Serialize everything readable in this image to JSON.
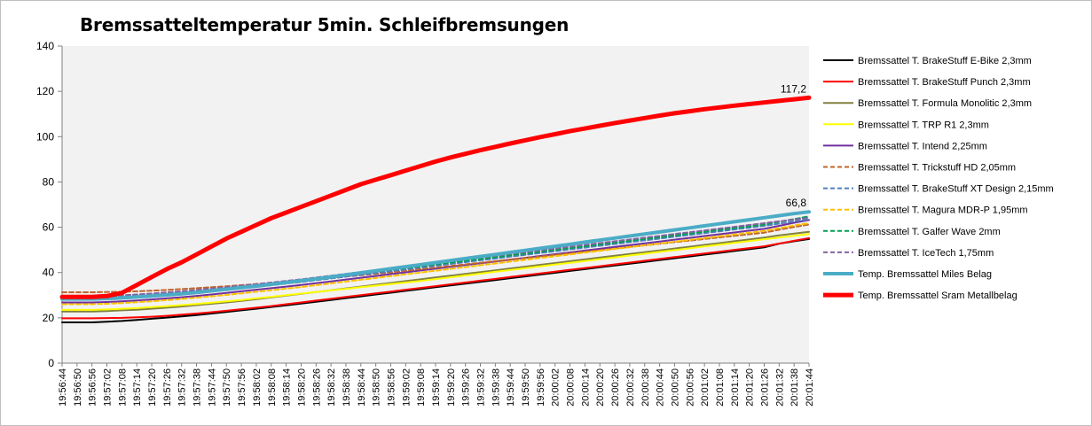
{
  "chart_data": {
    "type": "line",
    "title": "Bremssatteltemperatur  5min. Schleifbremsungen",
    "ylim": [
      0,
      140
    ],
    "yticks": [
      0,
      20,
      40,
      60,
      80,
      100,
      120,
      140
    ],
    "grid": false,
    "legend_position": "right",
    "plot_background": "#f2f2f2",
    "x_labels": [
      "19:56:44",
      "19:56:50",
      "19:56:56",
      "19:57:02",
      "19:57:08",
      "19:57:14",
      "19:57:20",
      "19:57:26",
      "19:57:32",
      "19:57:38",
      "19:57:44",
      "19:57:50",
      "19:57:56",
      "19:58:02",
      "19:58:08",
      "19:58:14",
      "19:58:20",
      "19:58:26",
      "19:58:32",
      "19:58:38",
      "19:58:44",
      "19:58:50",
      "19:58:56",
      "19:59:02",
      "19:59:08",
      "19:59:14",
      "19:59:20",
      "19:59:26",
      "19:59:32",
      "19:59:38",
      "19:59:44",
      "19:59:50",
      "19:59:56",
      "20:00:02",
      "20:00:08",
      "20:00:14",
      "20:00:20",
      "20:00:26",
      "20:00:32",
      "20:00:38",
      "20:00:44",
      "20:00:50",
      "20:00:56",
      "20:01:02",
      "20:01:08",
      "20:01:14",
      "20:01:20",
      "20:01:26",
      "20:01:32",
      "20:01:38",
      "20:01:44"
    ],
    "series": [
      {
        "name": "Bremssattel T. BrakeStuff E-Bike 2,3mm",
        "color": "#000000",
        "width": 2,
        "dash": "",
        "values": [
          18,
          18,
          18,
          18.3,
          18.6,
          19.1,
          19.6,
          20.1,
          20.6,
          21.2,
          21.9,
          22.6,
          23.3,
          24,
          24.8,
          25.5,
          26.3,
          27.1,
          27.9,
          28.7,
          29.5,
          30.3,
          31.1,
          31.9,
          32.7,
          33.5,
          34.3,
          35.1,
          35.9,
          36.7,
          37.5,
          38.3,
          39.1,
          39.9,
          40.7,
          41.5,
          42.3,
          43.1,
          43.9,
          44.7,
          45.5,
          46.3,
          47.1,
          47.9,
          48.7,
          49.5,
          50.3,
          51.1,
          52.7,
          53.8,
          54.8
        ]
      },
      {
        "name": "Bremssattel T. BrakeStuff Punch 2,3mm",
        "color": "#ff0000",
        "width": 2,
        "dash": "",
        "values": [
          19.8,
          19.8,
          19.8,
          19.9,
          20,
          20.2,
          20.5,
          20.9,
          21.4,
          21.9,
          22.5,
          23.1,
          23.8,
          24.5,
          25.2,
          26,
          26.8,
          27.6,
          28.4,
          29.2,
          30,
          30.8,
          31.6,
          32.4,
          33.2,
          34,
          34.8,
          35.6,
          36.4,
          37.2,
          38,
          38.8,
          39.6,
          40.4,
          41.2,
          42,
          42.8,
          43.6,
          44.4,
          45.2,
          46,
          46.8,
          47.6,
          48.4,
          49.2,
          50,
          50.8,
          51.6,
          52.8,
          54,
          55.2
        ]
      },
      {
        "name": "Bremssattel T. Formula Monolitic 2,3mm",
        "color": "#808040",
        "width": 2,
        "dash": "",
        "values": [
          22.8,
          22.8,
          22.8,
          23,
          23.3,
          23.6,
          24,
          24.5,
          25,
          25.6,
          26.2,
          26.8,
          27.5,
          28.2,
          29,
          29.8,
          30.6,
          31.4,
          32.2,
          33,
          33.8,
          34.6,
          35.4,
          36.2,
          37,
          37.8,
          38.6,
          39.4,
          40.2,
          41,
          41.8,
          42.6,
          43.4,
          44.2,
          45,
          45.8,
          46.6,
          47.4,
          48.2,
          49,
          49.8,
          50.6,
          51.4,
          52.2,
          53,
          53.8,
          54.6,
          55.4,
          56.4,
          57.2,
          58
        ]
      },
      {
        "name": "Bremssattel T. TRP R1  2,3mm",
        "color": "#ffff00",
        "width": 2,
        "dash": "",
        "values": [
          23.5,
          23.5,
          23.5,
          23.7,
          24,
          24.3,
          24.7,
          25.1,
          25.6,
          26.1,
          26.7,
          27.3,
          27.9,
          28.6,
          29.3,
          30,
          30.7,
          31.4,
          32.1,
          32.8,
          33.5,
          34.2,
          34.9,
          35.6,
          36.3,
          37.1,
          37.9,
          38.7,
          39.5,
          40.3,
          41.1,
          41.9,
          42.7,
          43.5,
          44.3,
          45.1,
          45.9,
          46.7,
          47.5,
          48.3,
          49.1,
          49.9,
          50.7,
          51.5,
          52.3,
          53.1,
          53.9,
          54.7,
          55.4,
          56.2,
          57
        ]
      },
      {
        "name": "Bremssattel T. Intend 2,25mm",
        "color": "#7030a0",
        "width": 2,
        "dash": "",
        "values": [
          26.8,
          26.8,
          26.8,
          27,
          27.3,
          27.7,
          28.1,
          28.6,
          29.1,
          29.7,
          30.3,
          31,
          31.7,
          32.4,
          33.1,
          33.8,
          34.5,
          35.3,
          36.1,
          36.9,
          37.7,
          38.5,
          39.3,
          40.1,
          40.9,
          41.7,
          42.5,
          43.3,
          44.1,
          44.9,
          45.7,
          46.5,
          47.3,
          48.1,
          48.9,
          49.7,
          50.5,
          51.3,
          52.1,
          52.9,
          53.7,
          54.5,
          55.3,
          56.1,
          56.9,
          57.7,
          58.5,
          59.3,
          60.6,
          62,
          63.2
        ]
      },
      {
        "name": "Bremssattel T. Trickstuff HD 2,05mm",
        "color": "#c0642c",
        "width": 2,
        "dash": "5,3",
        "values": [
          31.3,
          31.3,
          31.3,
          31.4,
          31.5,
          31.7,
          32,
          32.3,
          32.7,
          33.1,
          33.5,
          33.9,
          34.4,
          34.9,
          35.4,
          35.9,
          36.4,
          37,
          37.6,
          38.2,
          38.8,
          39.4,
          40.1,
          40.8,
          41.5,
          42.2,
          42.9,
          43.6,
          44.3,
          45,
          45.7,
          46.4,
          47.1,
          47.8,
          48.5,
          49.2,
          49.9,
          50.6,
          51.3,
          52,
          52.7,
          53.4,
          54.1,
          54.8,
          55.5,
          56.2,
          56.9,
          57.6,
          58.9,
          60.1,
          61.2
        ]
      },
      {
        "name": "Bremssattel T. BrakeStuff XT Design 2,15mm",
        "color": "#4f81bd",
        "width": 2,
        "dash": "5,3",
        "values": [
          28.2,
          28.2,
          28.2,
          28.4,
          28.7,
          29.1,
          29.5,
          30,
          30.5,
          31.1,
          31.7,
          32.3,
          33,
          33.7,
          34.4,
          35.1,
          35.8,
          36.6,
          37.4,
          38.2,
          39,
          39.8,
          40.6,
          41.4,
          42.2,
          43,
          43.8,
          44.6,
          45.4,
          46.2,
          47,
          47.8,
          48.6,
          49.4,
          50.2,
          51,
          51.8,
          52.6,
          53.4,
          54.2,
          55,
          55.8,
          56.6,
          57.4,
          58.2,
          59,
          59.8,
          60.6,
          61.6,
          62.6,
          63.5
        ]
      },
      {
        "name": "Bremssattel T. Magura MDR-P  1,95mm",
        "color": "#ffc000",
        "width": 2,
        "dash": "5,3",
        "values": [
          26,
          26,
          26,
          26.2,
          26.5,
          26.9,
          27.3,
          27.8,
          28.3,
          28.9,
          29.5,
          30.1,
          30.8,
          31.5,
          32.2,
          32.9,
          33.6,
          34.4,
          35.2,
          36,
          36.8,
          37.6,
          38.4,
          39.2,
          40,
          40.8,
          41.6,
          42.4,
          43.2,
          44,
          44.8,
          45.6,
          46.4,
          47.2,
          48,
          48.8,
          49.6,
          50.4,
          51.2,
          52,
          52.8,
          53.6,
          54.4,
          55.2,
          56,
          56.8,
          57.6,
          58.4,
          59.6,
          60.8,
          61.8
        ]
      },
      {
        "name": "Bremssattel T. Galfer Wave 2mm",
        "color": "#00a050",
        "width": 2,
        "dash": "5,3",
        "values": [
          28.8,
          28.8,
          28.8,
          29,
          29.3,
          29.7,
          30.1,
          30.6,
          31.1,
          31.7,
          32.3,
          32.9,
          33.6,
          34.3,
          35,
          35.7,
          36.4,
          37.2,
          38,
          38.8,
          39.6,
          40.4,
          41.2,
          42,
          42.8,
          43.6,
          44.4,
          45.2,
          46,
          46.8,
          47.6,
          48.4,
          49.2,
          50,
          50.8,
          51.6,
          52.4,
          53.2,
          54,
          54.8,
          55.6,
          56.4,
          57.2,
          58,
          58.8,
          59.6,
          60.4,
          61.2,
          62.4,
          63.6,
          64.8
        ]
      },
      {
        "name": "Bremssattel T. IceTech 1,75mm",
        "color": "#8064a2",
        "width": 2,
        "dash": "5,3",
        "values": [
          29.4,
          29.4,
          29.4,
          29.6,
          29.9,
          30.3,
          30.7,
          31.2,
          31.7,
          32.3,
          32.9,
          33.5,
          34.2,
          34.9,
          35.6,
          36.3,
          37,
          37.8,
          38.6,
          39.4,
          40.2,
          41,
          41.8,
          42.6,
          43.4,
          44.2,
          45,
          45.8,
          46.6,
          47.4,
          48.2,
          49,
          49.8,
          50.6,
          51.4,
          52.2,
          53,
          53.8,
          54.6,
          55.4,
          56.2,
          57,
          57.8,
          58.6,
          59.4,
          60.2,
          61,
          61.8,
          62.6,
          63.4,
          64.2
        ]
      },
      {
        "name": "Temp. Bremssattel  Miles Belag",
        "color": "#4bacc6",
        "width": 4,
        "dash": "",
        "values": [
          28.3,
          28.3,
          28.3,
          28.5,
          28.8,
          29.2,
          29.6,
          30.1,
          30.6,
          31.2,
          31.9,
          32.6,
          33.3,
          34,
          34.8,
          35.6,
          36.4,
          37.2,
          38.1,
          39,
          39.9,
          40.8,
          41.7,
          42.6,
          43.5,
          44.4,
          45.3,
          46.2,
          47.1,
          48,
          48.9,
          49.8,
          50.7,
          51.6,
          52.5,
          53.4,
          54.3,
          55.2,
          56.1,
          57,
          57.9,
          58.8,
          59.7,
          60.6,
          61.5,
          62.4,
          63.3,
          64.2,
          65.1,
          66,
          66.8
        ]
      },
      {
        "name": "Temp. Bremssattel  Sram Metallbelag",
        "color": "#ff0000",
        "width": 5,
        "dash": "",
        "values": [
          29.2,
          29.2,
          29.2,
          29.6,
          31,
          34.5,
          38,
          41.5,
          44.5,
          48,
          51.5,
          55,
          58,
          61,
          64,
          66.5,
          69,
          71.5,
          74,
          76.5,
          79,
          81,
          83,
          85,
          87,
          89,
          90.8,
          92.4,
          94,
          95.5,
          97,
          98.4,
          99.8,
          101.1,
          102.4,
          103.6,
          104.8,
          106,
          107.1,
          108.2,
          109.3,
          110.3,
          111.2,
          112.1,
          112.9,
          113.7,
          114.4,
          115.1,
          115.8,
          116.5,
          117.2
        ]
      }
    ],
    "annotations": [
      {
        "text": "117,2",
        "series": 11,
        "index": 50
      },
      {
        "text": "66,8",
        "series": 10,
        "index": 50
      }
    ]
  }
}
